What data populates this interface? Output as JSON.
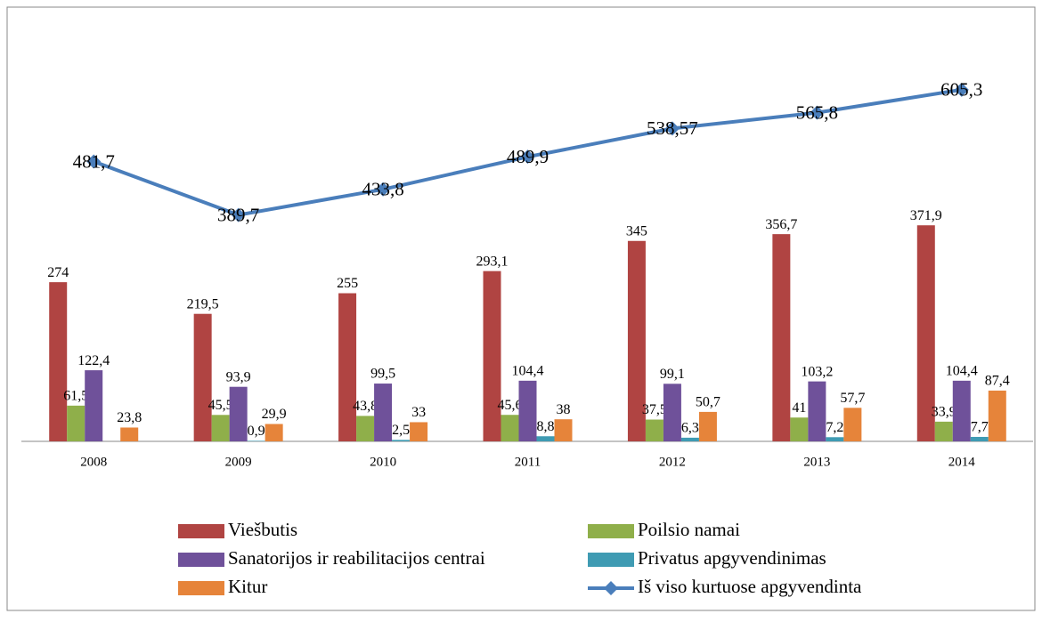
{
  "chart_data": {
    "type": "bar_line",
    "categories": [
      "2008",
      "2009",
      "2010",
      "2011",
      "2012",
      "2013",
      "2014"
    ],
    "series": [
      {
        "name": "Viešbutis",
        "color": "#b04442",
        "type": "bar",
        "values": [
          274,
          219.5,
          255,
          293.1,
          345,
          356.7,
          371.9
        ],
        "value_labels": [
          "274",
          "219,5",
          "255",
          "293,1",
          "345",
          "356,7",
          "371,9"
        ]
      },
      {
        "name": "Poilsio namai",
        "color": "#8faf4a",
        "type": "bar",
        "values": [
          61.5,
          45.5,
          43.8,
          45.6,
          37.5,
          41,
          33.9
        ],
        "value_labels": [
          "61,5",
          "45,5",
          "43,8",
          "45,6",
          "37,5",
          "41",
          "33,9"
        ]
      },
      {
        "name": "Sanatorijos ir reabilitacijos centrai",
        "color": "#6f519a",
        "type": "bar",
        "values": [
          122.4,
          93.9,
          99.5,
          104.4,
          99.1,
          103.2,
          104.4
        ],
        "value_labels": [
          "122,4",
          "93,9",
          "99,5",
          "104,4",
          "99,1",
          "103,2",
          "104,4"
        ]
      },
      {
        "name": "Privatus apgyvendinimas",
        "color": "#3f9bb3",
        "type": "bar",
        "values": [
          null,
          0.9,
          2.5,
          8.8,
          6.3,
          7.2,
          7.7
        ],
        "value_labels": [
          null,
          "0,9",
          "2,5",
          "8,8",
          "6,3",
          "7,2",
          "7,7"
        ]
      },
      {
        "name": "Kitur",
        "color": "#e6843a",
        "type": "bar",
        "values": [
          23.8,
          29.9,
          33,
          38,
          50.7,
          57.7,
          87.4
        ],
        "value_labels": [
          "23,8",
          "29,9",
          "33",
          "38",
          "50,7",
          "57,7",
          "87,4"
        ]
      },
      {
        "name": "Iš viso kurtuose apgyvendinta",
        "color": "#4a7ebb",
        "type": "line",
        "values": [
          481.7,
          389.7,
          433.8,
          489.9,
          538.57,
          565.8,
          605.3
        ],
        "value_labels": [
          "481,7",
          "389,7",
          "433,8",
          "489,9",
          "538,57",
          "565,8",
          "605,3"
        ]
      }
    ],
    "ylim": [
      0,
      700
    ],
    "legend": "bottom"
  }
}
